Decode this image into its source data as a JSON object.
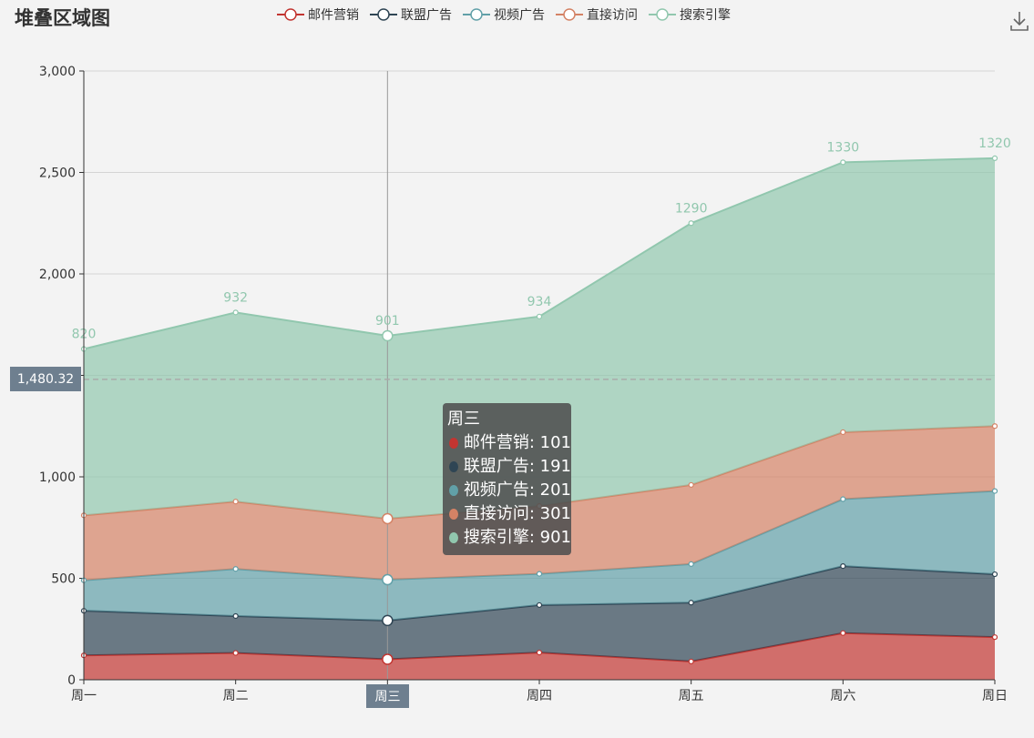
{
  "chart_data": {
    "type": "area",
    "stacked": true,
    "title": "堆叠区域图",
    "categories": [
      "周一",
      "周二",
      "周三",
      "周四",
      "周五",
      "周六",
      "周日"
    ],
    "series": [
      {
        "name": "邮件营销",
        "values": [
          120,
          132,
          101,
          134,
          90,
          230,
          210
        ],
        "color": "#c23531"
      },
      {
        "name": "联盟广告",
        "values": [
          220,
          182,
          191,
          234,
          290,
          330,
          310
        ],
        "color": "#2f4554"
      },
      {
        "name": "视频广告",
        "values": [
          150,
          232,
          201,
          154,
          190,
          330,
          410
        ],
        "color": "#61a0a8"
      },
      {
        "name": "直接访问",
        "values": [
          320,
          332,
          301,
          334,
          390,
          330,
          320
        ],
        "color": "#d48265"
      },
      {
        "name": "搜索引擎",
        "values": [
          820,
          932,
          901,
          934,
          1290,
          1330,
          1320
        ],
        "color": "#91c7ae"
      }
    ],
    "ylim": [
      0,
      3000
    ],
    "yticks": [
      0,
      500,
      1000,
      1500,
      2000,
      2500,
      3000
    ],
    "ytick_labels": [
      "0",
      "500",
      "1,000",
      "1,500",
      "2,000",
      "2,500",
      "3,000"
    ],
    "top_labels": [
      "820",
      "932",
      "901",
      "934",
      "1290",
      "1330",
      "1320"
    ],
    "legend_position": "top-center",
    "grid": true
  },
  "tooltip": {
    "title": "周三",
    "rows": [
      {
        "label": "邮件营销: 101",
        "color": "#c23531"
      },
      {
        "label": "联盟广告: 191",
        "color": "#2f4554"
      },
      {
        "label": "视频广告: 201",
        "color": "#61a0a8"
      },
      {
        "label": "直接访问: 301",
        "color": "#d48265"
      },
      {
        "label": "搜索引擎: 901",
        "color": "#91c7ae"
      }
    ]
  },
  "axis_pointer": {
    "y_value": 1480.32,
    "y_label": "1,480.32",
    "x_category": "周三"
  },
  "toolbox": {
    "download_icon": "download-icon"
  }
}
